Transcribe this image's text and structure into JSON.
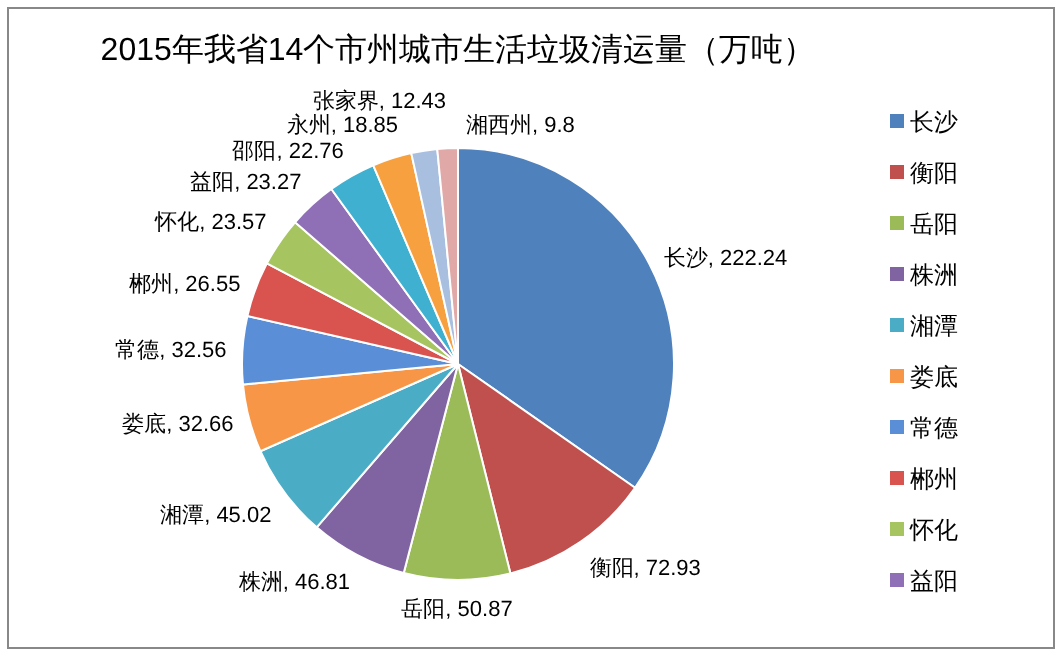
{
  "chart_data": {
    "type": "pie",
    "title": "2015年我省14个市州城市生活垃圾清运量（万吨）",
    "categories": [
      "长沙",
      "衡阳",
      "岳阳",
      "株洲",
      "湘潭",
      "娄底",
      "常德",
      "郴州",
      "怀化",
      "益阳",
      "邵阳",
      "永州",
      "张家界",
      "湘西州"
    ],
    "values": [
      222.24,
      72.93,
      50.87,
      46.81,
      45.02,
      32.66,
      32.56,
      26.55,
      23.57,
      23.27,
      22.76,
      18.85,
      12.43,
      9.8
    ],
    "colors": [
      "#4f81bd",
      "#c0504d",
      "#9bbb59",
      "#8064a2",
      "#4bacc6",
      "#f79646",
      "#5a8ed6",
      "#d9534f",
      "#a6c560",
      "#8f6fb5",
      "#3fb0d0",
      "#f6a040",
      "#a9bfe0",
      "#e0a8a6"
    ],
    "value_labels": [
      ", 222.24",
      ", 72.93",
      ", 50.87",
      ", 46.81",
      ", 45.02",
      ", 32.66",
      ", 32.56",
      ", 26.55",
      ", 23.57",
      ", 23.27",
      ", 22.76",
      ", 18.85",
      ", 12.43",
      ", 9.8"
    ],
    "legend": "right"
  }
}
